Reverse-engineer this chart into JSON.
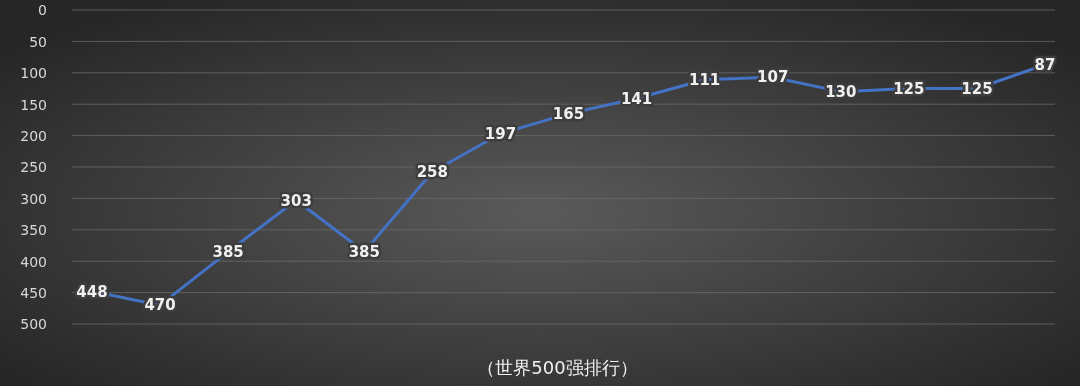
{
  "chart_data": {
    "type": "line",
    "xlabel": "（世界500强排行）",
    "categories": [
      null,
      null,
      null,
      null,
      null,
      null,
      null,
      null,
      null,
      null,
      null,
      null,
      null,
      null,
      null
    ],
    "series": [
      {
        "color": "#4472c4",
        "values": [
          448,
          470,
          385,
          303,
          385,
          258,
          197,
          165,
          141,
          111,
          107,
          130,
          125,
          125,
          87
        ]
      }
    ],
    "ylim": [
      500,
      0
    ],
    "yticks": [
      0,
      50,
      100,
      150,
      200,
      250,
      300,
      350,
      400,
      450,
      500
    ],
    "grid": "y",
    "data_labels": true,
    "marker": "none",
    "line_style": "solid"
  }
}
